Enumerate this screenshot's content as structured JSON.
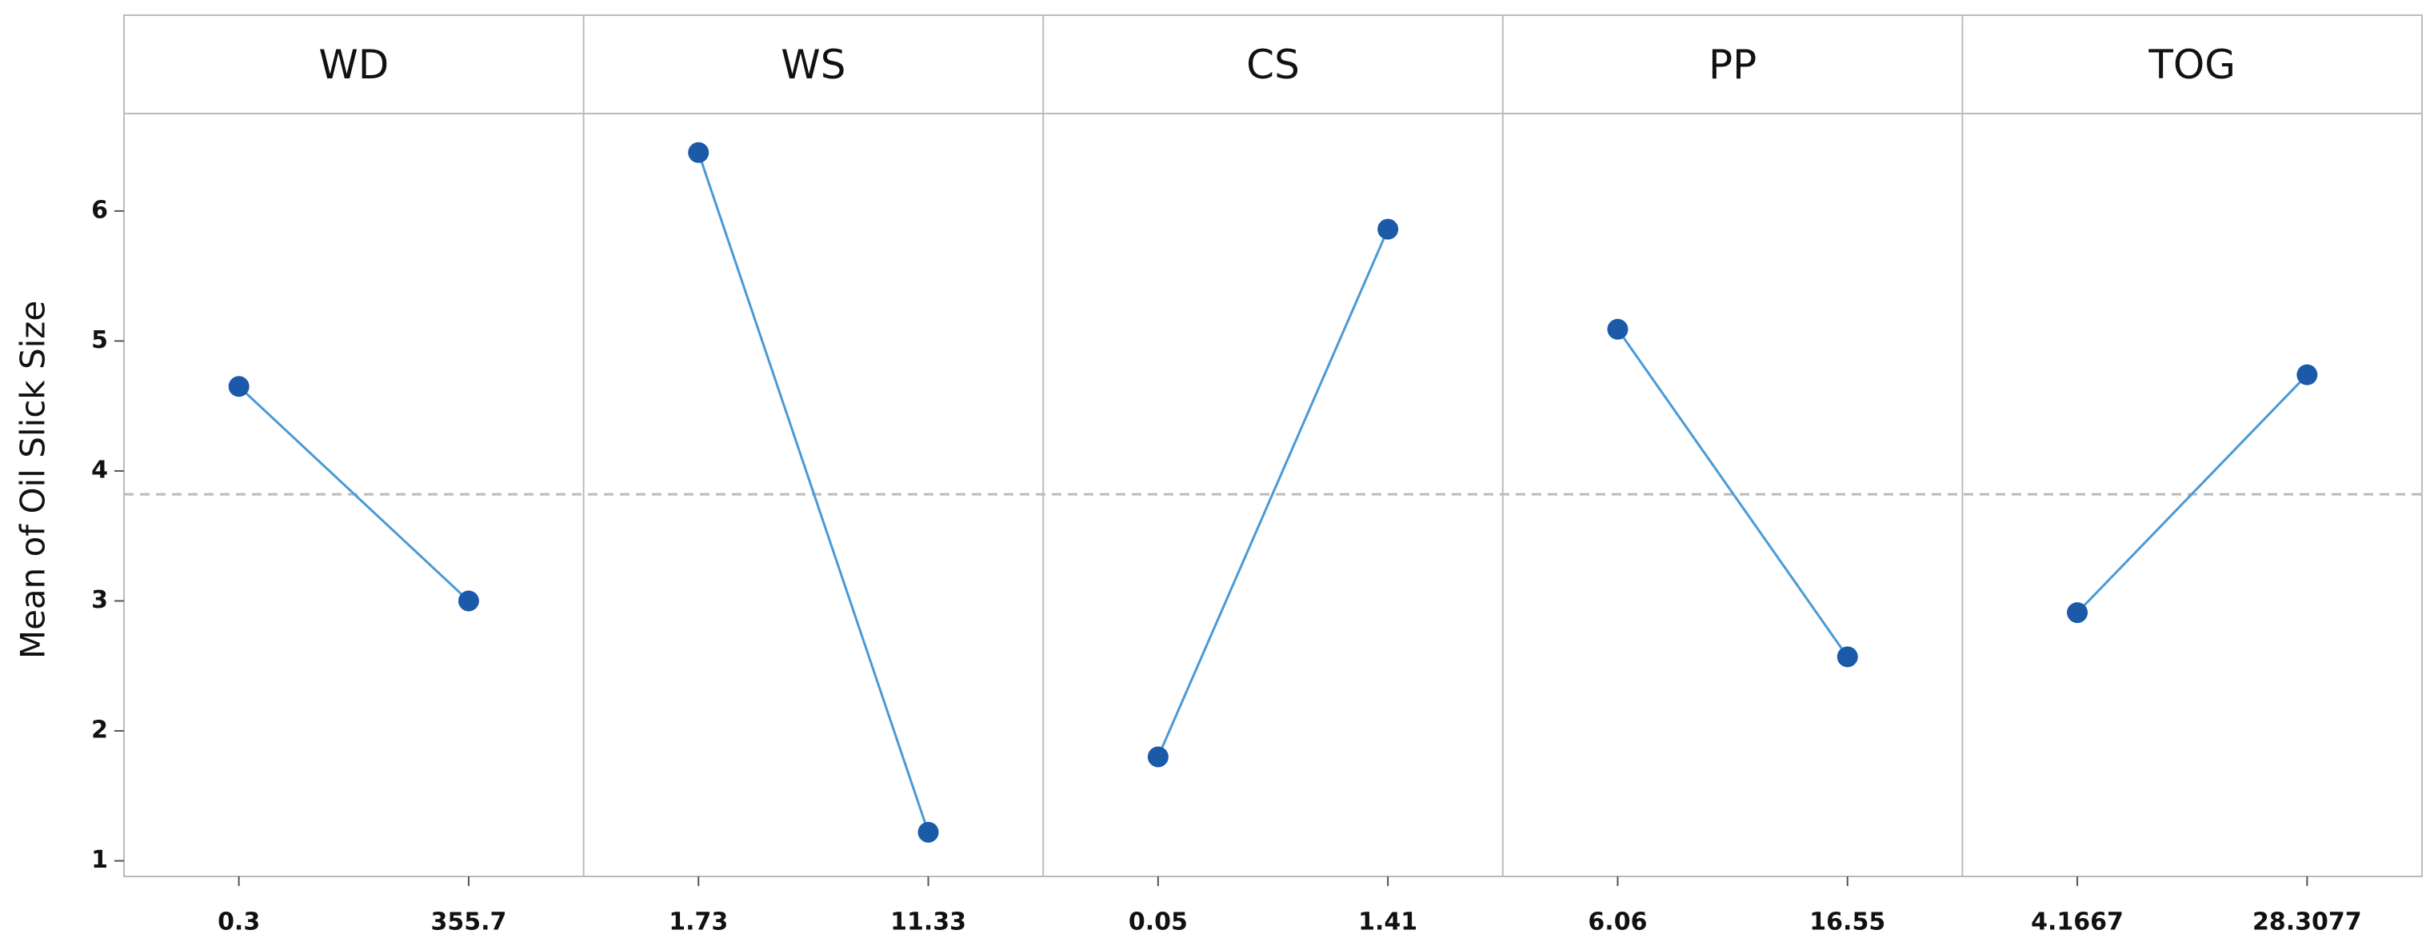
{
  "chart_data": {
    "type": "line",
    "ylabel": "Mean of Oil Slick Size",
    "ylim": [
      0.88,
      6.75
    ],
    "yticks": [
      1,
      2,
      3,
      4,
      5,
      6
    ],
    "reference_line": 3.82,
    "color": "#1a5aa8",
    "line_color": "#4a9ad6",
    "panels": [
      {
        "title": "WD",
        "categories": [
          "0.3",
          "355.7"
        ],
        "values": [
          4.65,
          3.0
        ]
      },
      {
        "title": "WS",
        "categories": [
          "1.73",
          "11.33"
        ],
        "values": [
          6.45,
          1.22
        ]
      },
      {
        "title": "CS",
        "categories": [
          "0.05",
          "1.41"
        ],
        "values": [
          1.8,
          5.86
        ]
      },
      {
        "title": "PP",
        "categories": [
          "6.06",
          "16.55"
        ],
        "values": [
          5.09,
          2.57
        ]
      },
      {
        "title": "TOG",
        "categories": [
          "4.1667",
          "28.3077"
        ],
        "values": [
          2.91,
          4.74
        ]
      }
    ]
  }
}
